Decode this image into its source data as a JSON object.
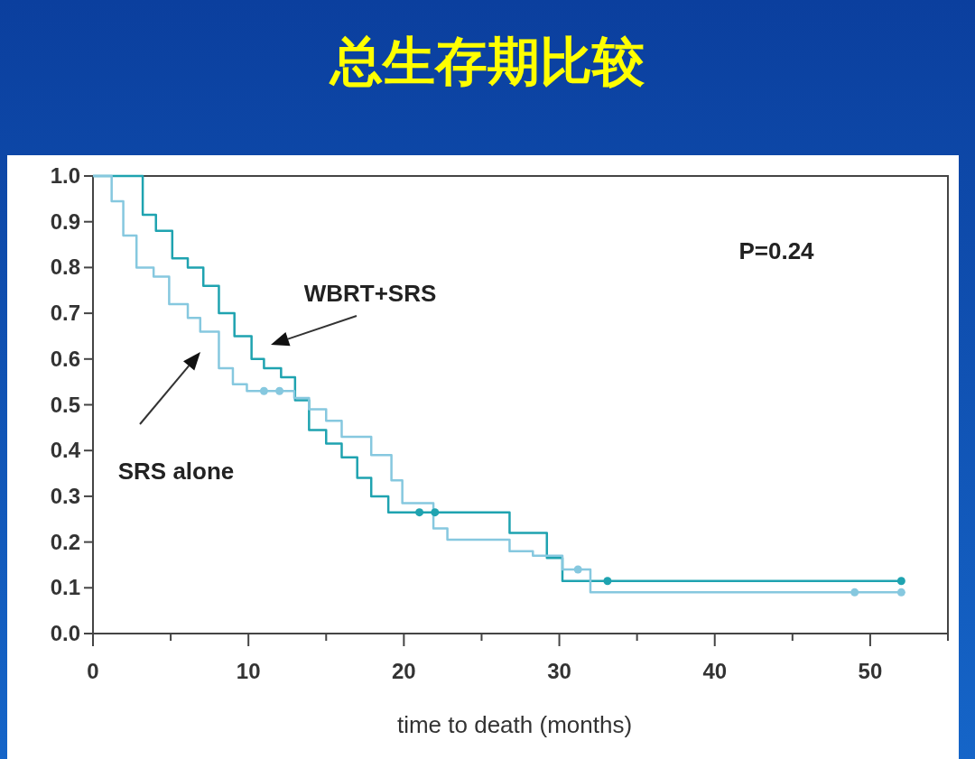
{
  "chart_data": {
    "type": "step",
    "title": "总生存期比较",
    "xlabel": "time to death (months)",
    "xlim": [
      0,
      55
    ],
    "xticks": [
      0,
      {
        "value": 5,
        "label": null
      },
      10,
      {
        "value": 15,
        "label": null
      },
      20,
      {
        "value": 25,
        "label": null
      },
      30,
      {
        "value": 35,
        "label": null
      },
      40,
      {
        "value": 45,
        "label": null
      },
      50,
      {
        "value": 55,
        "label": null
      }
    ],
    "ylim": [
      0,
      1
    ],
    "yticks": [
      {
        "value": 0,
        "label": "0.0"
      },
      0.1,
      0.2,
      0.3,
      0.4,
      0.5,
      0.6,
      0.7,
      0.8,
      0.9,
      {
        "value": 1,
        "label": "1.0"
      }
    ],
    "grid": false,
    "marker": "none",
    "line_style": "solid",
    "series": [
      {
        "color": "#1fa3b0",
        "x": [
          0,
          3.2,
          4.05,
          5.1,
          6.1,
          7.1,
          8.1,
          9.1,
          10.2,
          11.0,
          12.1,
          13.0,
          13.9,
          15.0,
          16.0,
          17.0,
          17.9,
          19.0,
          26.8,
          29.2,
          30.2,
          52.0
        ],
        "values": [
          1.0,
          0.915,
          0.88,
          0.82,
          0.8,
          0.76,
          0.7,
          0.65,
          0.6,
          0.58,
          0.56,
          0.51,
          0.445,
          0.415,
          0.385,
          0.34,
          0.3,
          0.265,
          0.22,
          0.165,
          0.115,
          0.115
        ]
      },
      {
        "color": "#86c8df",
        "x": [
          0,
          1.2,
          1.95,
          2.8,
          3.9,
          4.9,
          6.1,
          6.9,
          8.1,
          9.0,
          9.9,
          12.95,
          13.9,
          15.0,
          16.0,
          17.9,
          19.2,
          19.9,
          21.9,
          22.8,
          26.8,
          28.3,
          30.2,
          32.0,
          52.0
        ],
        "values": [
          1.0,
          0.945,
          0.87,
          0.8,
          0.78,
          0.72,
          0.69,
          0.66,
          0.58,
          0.545,
          0.53,
          0.515,
          0.49,
          0.465,
          0.43,
          0.39,
          0.335,
          0.285,
          0.23,
          0.205,
          0.18,
          0.17,
          0.14,
          0.09,
          0.09
        ]
      },
      {
        "type": "scatter",
        "marker": "circle",
        "color": "#1fa3b0",
        "x": [
          21.0,
          22.0,
          33.1,
          52.0
        ],
        "values": [
          0.265,
          0.265,
          0.115,
          0.115
        ]
      },
      {
        "type": "scatter",
        "marker": "circle",
        "color": "#86c8df",
        "x": [
          11.0,
          12.0,
          31.2,
          49.0,
          52.0
        ],
        "values": [
          0.53,
          0.53,
          0.14,
          0.09,
          0.09
        ]
      }
    ],
    "annotations": [
      "P=0.24",
      "WBRT+SRS",
      "SRS alone"
    ]
  }
}
